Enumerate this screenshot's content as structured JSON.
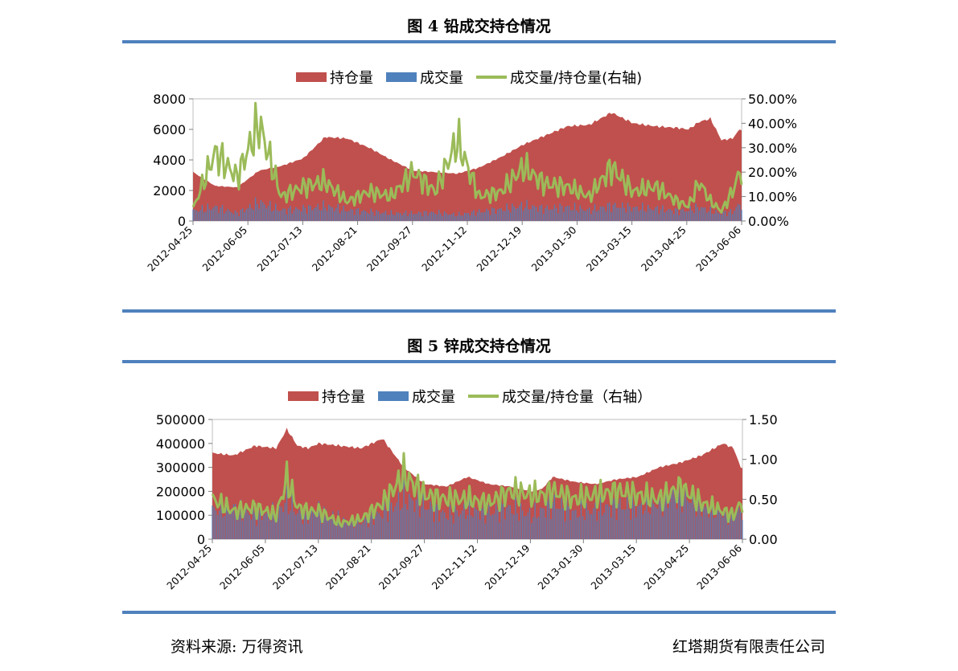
{
  "figure4": {
    "title": "图 4 铅成交持仓情况"
  },
  "figure5": {
    "title": "图 5 锌成交持仓情况"
  },
  "footer": {
    "source": "资料来源: 万得资讯",
    "company": "红塔期货有限责任公司"
  },
  "chart_data": [
    {
      "type": "area",
      "title": "图 4 铅成交持仓情况",
      "legend_position": "top",
      "legend": [
        "持仓量",
        "成交量",
        "成交量/持仓量(右轴)"
      ],
      "colors": {
        "open_interest": "#c0504d",
        "volume": "#4f81bd",
        "ratio": "#9bbb59"
      },
      "x_tick_labels": [
        "2012-04-25",
        "2012-06-05",
        "2012-07-13",
        "2012-08-21",
        "2012-09-27",
        "2012-11-12",
        "2012-12-19",
        "2013-01-30",
        "2013-03-15",
        "2013-04-25",
        "2013-06-06"
      ],
      "y_left": {
        "min": 0,
        "max": 8000,
        "ticks": [
          "0",
          "2000",
          "4000",
          "6000",
          "8000"
        ]
      },
      "y_right": {
        "min": 0,
        "max": 0.5,
        "ticks": [
          "0.00%",
          "10.00%",
          "20.00%",
          "30.00%",
          "40.00%",
          "50.00%"
        ]
      },
      "anchor_index": [
        0,
        12,
        24,
        36,
        48,
        60,
        72,
        84,
        96,
        108,
        120,
        132,
        144,
        156,
        168,
        180,
        192,
        204,
        216,
        228,
        240,
        252,
        264,
        270,
        276,
        282,
        288,
        294,
        298
      ],
      "series": [
        {
          "name": "持仓量",
          "axis": "left",
          "kind": "area",
          "values": [
            3200,
            2300,
            2200,
            3300,
            3600,
            4100,
            5500,
            5400,
            4800,
            4000,
            3300,
            3200,
            3100,
            3500,
            4200,
            5000,
            5600,
            6200,
            6300,
            7100,
            6400,
            6200,
            6100,
            6000,
            6500,
            6700,
            5300,
            5400,
            6000
          ]
        },
        {
          "name": "成交量",
          "axis": "left",
          "kind": "bars",
          "values": [
            650,
            900,
            500,
            1200,
            700,
            800,
            950,
            700,
            600,
            500,
            500,
            550,
            400,
            600,
            750,
            1000,
            800,
            900,
            700,
            1000,
            850,
            800,
            650,
            700,
            900,
            650,
            500,
            600,
            1100
          ]
        },
        {
          "name": "成交量/持仓量(右轴)",
          "axis": "right",
          "kind": "line",
          "values": [
            0.05,
            0.28,
            0.18,
            0.4,
            0.1,
            0.14,
            0.16,
            0.08,
            0.12,
            0.1,
            0.2,
            0.12,
            0.33,
            0.1,
            0.12,
            0.22,
            0.15,
            0.14,
            0.1,
            0.22,
            0.12,
            0.14,
            0.08,
            0.06,
            0.16,
            0.08,
            0.04,
            0.12,
            0.2
          ]
        }
      ]
    },
    {
      "type": "area",
      "title": "图 5 锌成交持仓情况",
      "legend_position": "top",
      "legend": [
        "持仓量",
        "成交量",
        "成交量/持仓量（右轴）"
      ],
      "colors": {
        "open_interest": "#c0504d",
        "volume": "#4f81bd",
        "ratio": "#9bbb59"
      },
      "x_tick_labels": [
        "2012-04-25",
        "2012-06-05",
        "2012-07-13",
        "2012-08-21",
        "2012-09-27",
        "2012-11-12",
        "2012-12-19",
        "2013-01-30",
        "2013-03-15",
        "2013-04-25",
        "2013-06-06"
      ],
      "y_left": {
        "min": 0,
        "max": 500000,
        "ticks": [
          "0",
          "100000",
          "200000",
          "300000",
          "400000",
          "500000"
        ]
      },
      "y_right": {
        "min": 0,
        "max": 1.5,
        "ticks": [
          "0.00",
          "0.50",
          "1.00",
          "1.50"
        ]
      },
      "anchor_index": [
        0,
        12,
        24,
        36,
        42,
        48,
        54,
        60,
        72,
        84,
        96,
        108,
        120,
        132,
        144,
        156,
        168,
        180,
        186,
        192,
        204,
        216,
        228,
        240,
        252,
        264,
        276,
        288,
        294,
        298
      ],
      "series": [
        {
          "name": "持仓量",
          "axis": "left",
          "kind": "area",
          "values": [
            360000,
            350000,
            390000,
            380000,
            460000,
            390000,
            380000,
            400000,
            390000,
            380000,
            420000,
            300000,
            230000,
            220000,
            260000,
            230000,
            220000,
            200000,
            210000,
            260000,
            240000,
            230000,
            250000,
            260000,
            300000,
            320000,
            350000,
            400000,
            380000,
            300000
          ]
        },
        {
          "name": "成交量",
          "axis": "left",
          "kind": "bars",
          "values": [
            120000,
            130000,
            100000,
            110000,
            160000,
            110000,
            100000,
            120000,
            80000,
            70000,
            110000,
            170000,
            140000,
            100000,
            120000,
            110000,
            130000,
            100000,
            120000,
            150000,
            110000,
            120000,
            140000,
            130000,
            150000,
            200000,
            130000,
            110000,
            100000,
            120000
          ]
        },
        {
          "name": "成交量/持仓量（右轴）",
          "axis": "right",
          "kind": "line",
          "values": [
            0.5,
            0.35,
            0.4,
            0.3,
            0.75,
            0.4,
            0.35,
            0.35,
            0.2,
            0.25,
            0.45,
            0.8,
            0.55,
            0.5,
            0.5,
            0.45,
            0.6,
            0.55,
            0.55,
            0.6,
            0.5,
            0.55,
            0.6,
            0.55,
            0.5,
            0.65,
            0.45,
            0.35,
            0.3,
            0.45
          ]
        }
      ]
    }
  ]
}
